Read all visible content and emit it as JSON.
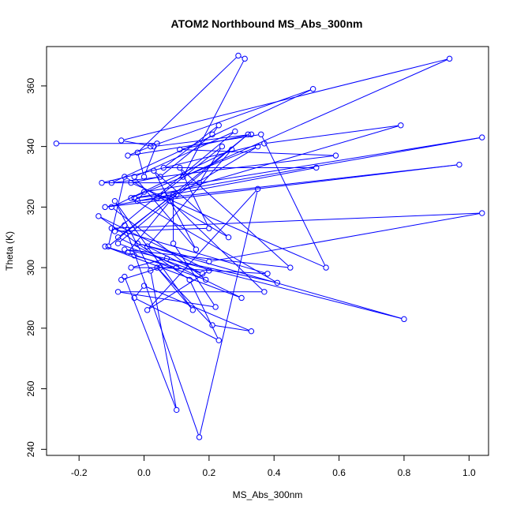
{
  "chart_data": {
    "type": "line",
    "title": "ATOM2 Northbound MS_Abs_300nm",
    "xlabel": "MS_Abs_300nm",
    "ylabel": "Theta (K)",
    "xlim": [
      -0.3,
      1.06
    ],
    "ylim": [
      238,
      373
    ],
    "x_ticks": [
      -0.2,
      0.0,
      0.2,
      0.4,
      0.6,
      0.8,
      1.0
    ],
    "x_tick_labels": [
      "-0.2",
      "0.0",
      "0.2",
      "0.4",
      "0.6",
      "0.8",
      "1.0"
    ],
    "y_ticks": [
      240,
      260,
      280,
      300,
      320,
      340,
      360
    ],
    "y_tick_labels": [
      "240",
      "260",
      "280",
      "300",
      "320",
      "340",
      "360"
    ],
    "grid": false,
    "legend": "none",
    "series_color": "#0000ff",
    "marker": "open-circle",
    "series": [
      {
        "x": [
          -0.27,
          0.04,
          0.0,
          -0.02,
          0.29,
          0.31,
          0.12,
          0.94,
          -0.07,
          0.03,
          0.33,
          0.11,
          0.59,
          -0.1,
          0.52,
          0.02,
          -0.05,
          0.36,
          0.56,
          -0.04,
          0.05,
          0.21,
          0.23,
          0.06,
          0.53,
          -0.12,
          0.97,
          -0.02,
          0.0,
          1.04,
          -0.03,
          0.06,
          0.79,
          0.37,
          -0.13,
          0.17,
          0.24,
          0.04,
          0.1,
          0.35,
          -0.04,
          0.41,
          -0.06,
          0.45,
          0.11,
          0.2,
          -0.09,
          0.28,
          -0.03,
          0.16,
          0.03,
          0.26,
          -0.06,
          -0.11,
          0.32,
          -0.08,
          0.18,
          0.01,
          0.27,
          -0.1,
          0.19,
          -0.05,
          0.08,
          0.37,
          -0.08,
          0.22,
          0.09,
          0.09,
          -0.08,
          0.3,
          -0.12,
          -0.03,
          0.1,
          -0.04,
          0.07,
          0.8,
          -0.02,
          0.2,
          1.04,
          -0.1,
          0.38,
          0.05,
          -0.07,
          -0.06,
          0.1,
          0.02,
          -0.09,
          0.15,
          0.04,
          0.21,
          0.33,
          0.0,
          -0.03,
          0.23,
          0.14,
          -0.14,
          0.2,
          0.01,
          0.35,
          0.17,
          -0.06
        ],
        "y": [
          341,
          341,
          330,
          338,
          370,
          369,
          330,
          369,
          342,
          340,
          344,
          339,
          337,
          328,
          359,
          340,
          337,
          344,
          300,
          328,
          330,
          344,
          347,
          333,
          333,
          320,
          334,
          322,
          325,
          343,
          323,
          324,
          347,
          341,
          328,
          328,
          340,
          323,
          324,
          340,
          323,
          295,
          306,
          300,
          333,
          313,
          312,
          345,
          330,
          306,
          332,
          310,
          330,
          307,
          344,
          308,
          298,
          307,
          339,
          320,
          296,
          305,
          322,
          292,
          292,
          287,
          308,
          324,
          310,
          290,
          307,
          304,
          300,
          300,
          303,
          283,
          308,
          302,
          318,
          313,
          298,
          300,
          296,
          297,
          253,
          299,
          322,
          286,
          300,
          281,
          279,
          294,
          290,
          276,
          296,
          317,
          299,
          286,
          326,
          244,
          314
        ]
      }
    ]
  }
}
